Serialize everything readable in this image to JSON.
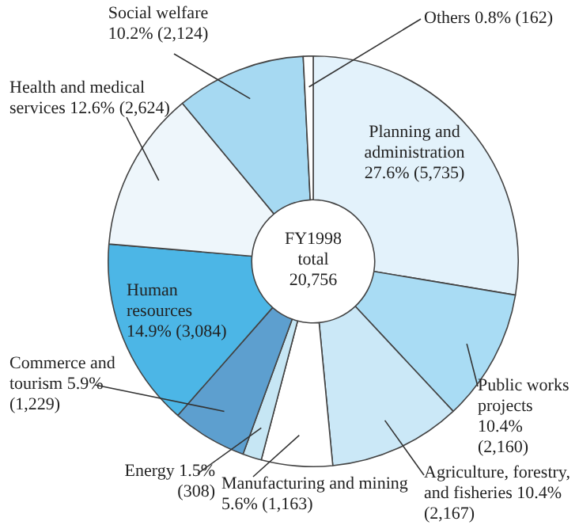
{
  "chart_data": {
    "type": "donut",
    "categories": [
      "Planning and administration",
      "Public works projects",
      "Agriculture, forestry, and fisheries",
      "Manufacturing and mining",
      "Energy",
      "Commerce and tourism",
      "Human resources",
      "Health and medical services",
      "Social welfare",
      "Others"
    ],
    "values": [
      5735,
      2160,
      2167,
      1163,
      308,
      1229,
      3084,
      2624,
      2124,
      162
    ],
    "value_labels": [
      "27.6% (5,735)",
      "10.4% (2,160)",
      "10.4% (2,167)",
      "5.6% (1,163)",
      "1.5% (308)",
      "5.9% (1,229)",
      "14.9% (3,084)",
      "12.6% (2,624)",
      "10.2% (2,124)",
      "0.8% (162)"
    ],
    "colors": [
      "#e3f2fb",
      "#a9dcf4",
      "#cbe8f7",
      "#ffffff",
      "#c6e6f4",
      "#5d9fcf",
      "#4cb6e6",
      "#eef6fb",
      "#a6d9f2",
      "#ffffff"
    ],
    "annotations": [
      "FY1998 total 20,756"
    ],
    "legend": false
  }
}
